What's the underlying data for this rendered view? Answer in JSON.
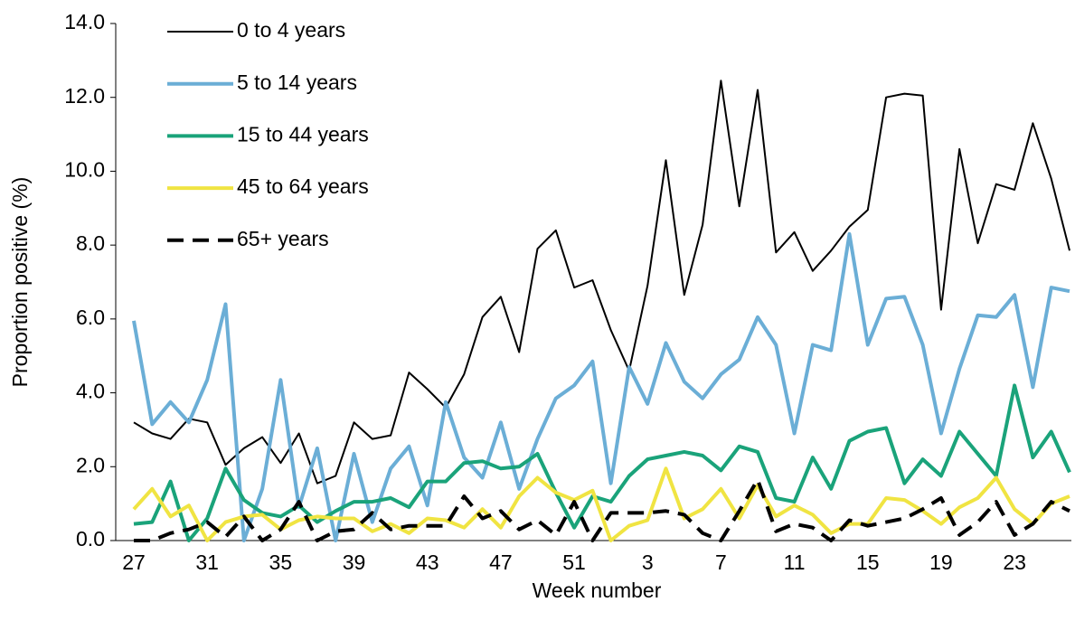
{
  "chart_data": {
    "type": "line",
    "x_label": "Week number",
    "y_label": "Proportion positive (%)",
    "categories": [
      "27",
      null,
      null,
      null,
      "31",
      null,
      null,
      null,
      "35",
      null,
      null,
      null,
      "39",
      null,
      null,
      null,
      "43",
      null,
      null,
      null,
      "47",
      null,
      null,
      null,
      "51",
      null,
      null,
      null,
      "3",
      null,
      null,
      null,
      "7",
      null,
      null,
      null,
      "11",
      null,
      null,
      null,
      "15",
      null,
      null,
      null,
      "19",
      null,
      null,
      null,
      "23",
      null,
      null,
      null
    ],
    "ylim": [
      0,
      14
    ],
    "yticks": [
      {
        "value": 0,
        "label": "0.0"
      },
      {
        "value": 2,
        "label": "2.0"
      },
      {
        "value": 4,
        "label": "4.0"
      },
      {
        "value": 6,
        "label": "6.0"
      },
      {
        "value": 8,
        "label": "8.0"
      },
      {
        "value": 10,
        "label": "10.0"
      },
      {
        "value": 12,
        "label": "12.0"
      },
      {
        "value": 14,
        "label": "14.0"
      }
    ],
    "series": [
      {
        "name": "0 to 4 years",
        "color": "#000000",
        "width": 2,
        "dashed": false,
        "values": [
          3.2,
          2.9,
          2.75,
          3.3,
          3.2,
          2.05,
          2.5,
          2.8,
          2.1,
          2.9,
          1.55,
          1.75,
          3.2,
          2.75,
          2.85,
          4.55,
          4.1,
          3.6,
          4.5,
          6.05,
          6.6,
          5.1,
          7.9,
          8.4,
          6.85,
          7.05,
          5.7,
          4.6,
          6.9,
          10.3,
          6.65,
          8.55,
          12.45,
          9.05,
          12.2,
          7.8,
          8.35,
          7.3,
          7.85,
          8.5,
          8.95,
          12.0,
          12.1,
          12.05,
          6.25,
          10.6,
          8.05,
          9.65,
          9.5,
          11.3,
          9.8,
          7.85
        ]
      },
      {
        "name": "5 to 14 years",
        "color": "#6baed6",
        "width": 4,
        "dashed": false,
        "values": [
          5.95,
          3.15,
          3.75,
          3.2,
          4.35,
          6.4,
          0.0,
          1.4,
          4.35,
          0.9,
          2.5,
          0.0,
          2.35,
          0.5,
          1.95,
          2.55,
          0.95,
          3.75,
          2.25,
          1.7,
          3.2,
          1.4,
          2.75,
          3.85,
          4.2,
          4.85,
          1.55,
          4.7,
          3.7,
          5.35,
          4.3,
          3.85,
          4.5,
          4.9,
          6.05,
          5.3,
          2.9,
          5.3,
          5.15,
          8.3,
          5.3,
          6.55,
          6.6,
          5.3,
          2.9,
          4.65,
          6.1,
          6.05,
          6.65,
          4.15,
          6.85,
          6.75
        ]
      },
      {
        "name": "15 to 44 years",
        "color": "#1aa37a",
        "width": 4,
        "dashed": false,
        "values": [
          0.45,
          0.5,
          1.6,
          0.0,
          0.6,
          1.95,
          1.1,
          0.75,
          0.65,
          0.95,
          0.5,
          0.8,
          1.05,
          1.05,
          1.15,
          0.9,
          1.6,
          1.6,
          2.1,
          2.15,
          1.95,
          2.0,
          2.35,
          1.3,
          0.35,
          1.2,
          1.05,
          1.75,
          2.2,
          2.3,
          2.4,
          2.3,
          1.9,
          2.55,
          2.4,
          1.15,
          1.05,
          2.25,
          1.4,
          2.7,
          2.95,
          3.05,
          1.55,
          2.2,
          1.75,
          2.95,
          2.35,
          1.75,
          4.2,
          2.25,
          2.95,
          1.85
        ]
      },
      {
        "name": "45 to 64 years",
        "color": "#f0e442",
        "width": 4,
        "dashed": false,
        "values": [
          0.85,
          1.4,
          0.65,
          0.95,
          0.0,
          0.5,
          0.65,
          0.7,
          0.3,
          0.55,
          0.65,
          0.6,
          0.6,
          0.25,
          0.45,
          0.2,
          0.6,
          0.55,
          0.35,
          0.85,
          0.35,
          1.2,
          1.7,
          1.3,
          1.1,
          1.35,
          0.0,
          0.4,
          0.55,
          1.95,
          0.6,
          0.85,
          1.4,
          0.6,
          1.5,
          0.65,
          0.95,
          0.7,
          0.2,
          0.45,
          0.45,
          1.15,
          1.1,
          0.8,
          0.45,
          0.9,
          1.15,
          1.7,
          0.85,
          0.45,
          1.0,
          1.2
        ]
      },
      {
        "name": "65+ years",
        "color": "#000000",
        "width": 4,
        "dashed": true,
        "values": [
          0.0,
          0.0,
          0.2,
          0.3,
          0.5,
          0.1,
          0.65,
          0.0,
          0.3,
          1.05,
          0.0,
          0.25,
          0.3,
          0.75,
          0.3,
          0.4,
          0.4,
          0.4,
          1.2,
          0.6,
          0.8,
          0.3,
          0.55,
          0.15,
          1.05,
          0.0,
          0.75,
          0.75,
          0.75,
          0.8,
          0.7,
          0.2,
          0.0,
          0.8,
          1.65,
          0.25,
          0.45,
          0.35,
          0.0,
          0.55,
          0.4,
          0.5,
          0.6,
          0.85,
          1.15,
          0.15,
          0.5,
          1.05,
          0.15,
          0.45,
          1.05,
          0.8
        ]
      }
    ]
  }
}
